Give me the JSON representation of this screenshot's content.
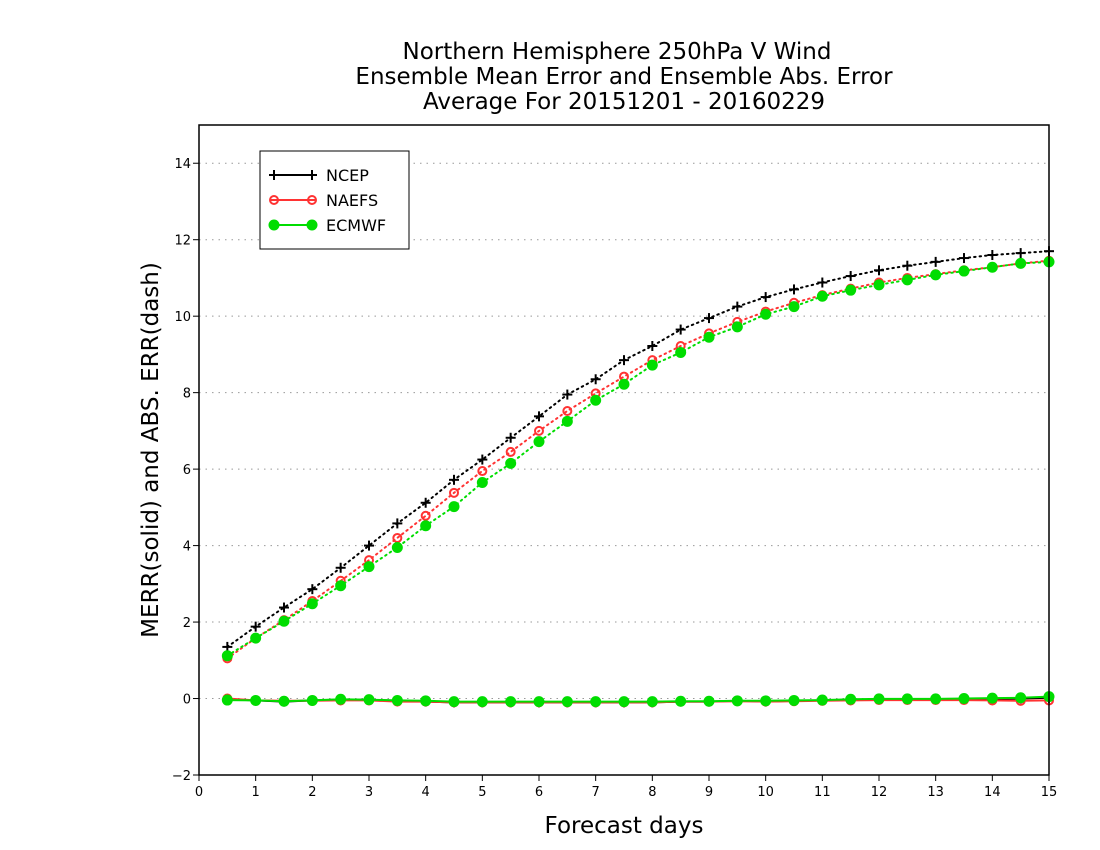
{
  "chart_data": {
    "type": "line",
    "title": [
      "Northern Hemisphere 250hPa V Wind",
      "Ensemble Mean Error and Ensemble Abs. Error",
      "Average For 20151201 - 20160229"
    ],
    "xlabel": "Forecast days",
    "ylabel": "MERR(solid) and ABS. ERR(dash)",
    "xlim": [
      0,
      15
    ],
    "ylim": [
      -2,
      15
    ],
    "xticks": [
      0,
      1,
      2,
      3,
      4,
      5,
      6,
      7,
      8,
      9,
      10,
      11,
      12,
      13,
      14,
      15
    ],
    "yticks": [
      -2,
      0,
      2,
      4,
      6,
      8,
      10,
      12,
      14
    ],
    "grid": "horizontal dotted",
    "legend_position": "top-left",
    "x": [
      0.5,
      1.0,
      1.5,
      2.0,
      2.5,
      3.0,
      3.5,
      4.0,
      4.5,
      5.0,
      5.5,
      6.0,
      6.5,
      7.0,
      7.5,
      8.0,
      8.5,
      9.0,
      9.5,
      10.0,
      10.5,
      11.0,
      11.5,
      12.0,
      12.5,
      13.0,
      13.5,
      14.0,
      14.5,
      15.0
    ],
    "series": [
      {
        "name": "NCEP",
        "color": "#000000",
        "marker": "plus",
        "abs_err": [
          1.35,
          1.88,
          2.38,
          2.86,
          3.42,
          4.0,
          4.58,
          5.12,
          5.72,
          6.25,
          6.82,
          7.38,
          7.95,
          8.35,
          8.85,
          9.22,
          9.65,
          9.95,
          10.25,
          10.5,
          10.7,
          10.88,
          11.05,
          11.2,
          11.32,
          11.42,
          11.52,
          11.6,
          11.65,
          11.7
        ],
        "mean_err": [
          -0.02,
          -0.05,
          -0.08,
          -0.05,
          -0.03,
          -0.03,
          -0.06,
          -0.08,
          -0.1,
          -0.1,
          -0.1,
          -0.1,
          -0.1,
          -0.1,
          -0.1,
          -0.1,
          -0.08,
          -0.08,
          -0.06,
          -0.08,
          -0.06,
          -0.05,
          -0.03,
          -0.02,
          -0.02,
          -0.02,
          -0.02,
          -0.02,
          0.0,
          0.02
        ]
      },
      {
        "name": "NAEFS",
        "color": "#ff3333",
        "marker": "open-circle",
        "abs_err": [
          1.05,
          1.58,
          2.05,
          2.55,
          3.08,
          3.62,
          4.2,
          4.78,
          5.38,
          5.95,
          6.45,
          7.0,
          7.52,
          7.98,
          8.42,
          8.85,
          9.22,
          9.55,
          9.85,
          10.12,
          10.35,
          10.55,
          10.72,
          10.88,
          11.0,
          11.1,
          11.2,
          11.28,
          11.38,
          11.45
        ],
        "mean_err": [
          0.0,
          -0.05,
          -0.06,
          -0.06,
          -0.05,
          -0.05,
          -0.08,
          -0.08,
          -0.1,
          -0.1,
          -0.1,
          -0.1,
          -0.1,
          -0.1,
          -0.1,
          -0.1,
          -0.08,
          -0.08,
          -0.07,
          -0.08,
          -0.07,
          -0.06,
          -0.05,
          -0.04,
          -0.04,
          -0.04,
          -0.04,
          -0.05,
          -0.06,
          -0.05
        ]
      },
      {
        "name": "ECMWF",
        "color": "#00dd00",
        "marker": "filled-circle",
        "abs_err": [
          1.12,
          1.58,
          2.02,
          2.48,
          2.95,
          3.45,
          3.95,
          4.52,
          5.02,
          5.65,
          6.15,
          6.72,
          7.25,
          7.8,
          8.22,
          8.72,
          9.05,
          9.45,
          9.72,
          10.05,
          10.25,
          10.52,
          10.68,
          10.82,
          10.95,
          11.08,
          11.18,
          11.28,
          11.38,
          11.42
        ],
        "mean_err": [
          -0.04,
          -0.05,
          -0.07,
          -0.05,
          -0.02,
          -0.03,
          -0.05,
          -0.06,
          -0.08,
          -0.08,
          -0.08,
          -0.08,
          -0.08,
          -0.08,
          -0.08,
          -0.08,
          -0.07,
          -0.07,
          -0.06,
          -0.06,
          -0.05,
          -0.04,
          -0.02,
          -0.01,
          -0.01,
          -0.01,
          0.0,
          0.01,
          0.02,
          0.05
        ]
      }
    ]
  }
}
